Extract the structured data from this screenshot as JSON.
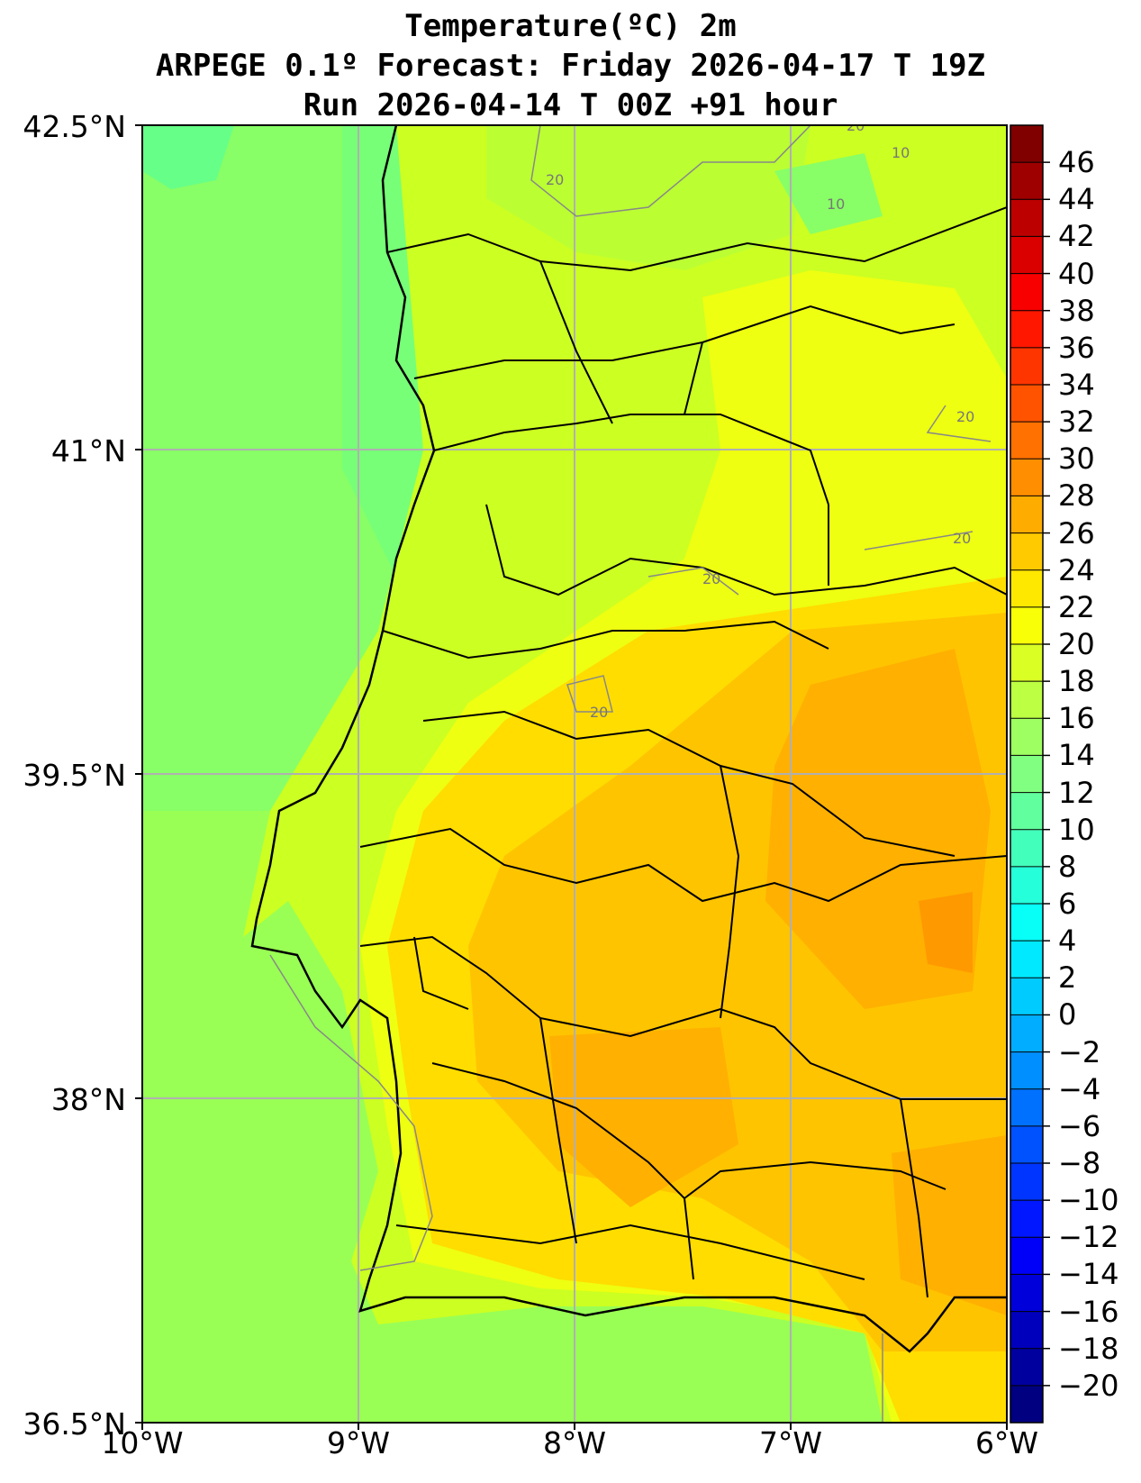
{
  "title": {
    "line1": "Temperature(ºC) 2m",
    "line2": "ARPEGE 0.1º Forecast: Friday 2026-04-17 T 19Z",
    "line3": "Run 2026-04-14 T 00Z +91 hour"
  },
  "map": {
    "lat_ticks": [
      "42.5°N",
      "41°N",
      "39.5°N",
      "38°N",
      "36.5°N"
    ],
    "lon_ticks": [
      "10°W",
      "9°W",
      "8°W",
      "7°W",
      "6°W"
    ],
    "contour_labels": [
      "20",
      "20",
      "10",
      "10",
      "20",
      "20",
      "20",
      "20"
    ],
    "colors": {
      "ocean": "#99ff55",
      "coast": "#77ff77",
      "land": "#ccff22",
      "warm": "#ffdd00",
      "hot": "#ffb000"
    }
  },
  "colorbar": {
    "labels": [
      "46",
      "44",
      "42",
      "40",
      "38",
      "36",
      "34",
      "32",
      "30",
      "28",
      "26",
      "24",
      "22",
      "20",
      "18",
      "16",
      "14",
      "12",
      "10",
      "8",
      "6",
      "4",
      "2",
      "0",
      "−2",
      "−4",
      "−6",
      "−8",
      "−10",
      "−12",
      "−14",
      "−16",
      "−18",
      "−20"
    ]
  }
}
